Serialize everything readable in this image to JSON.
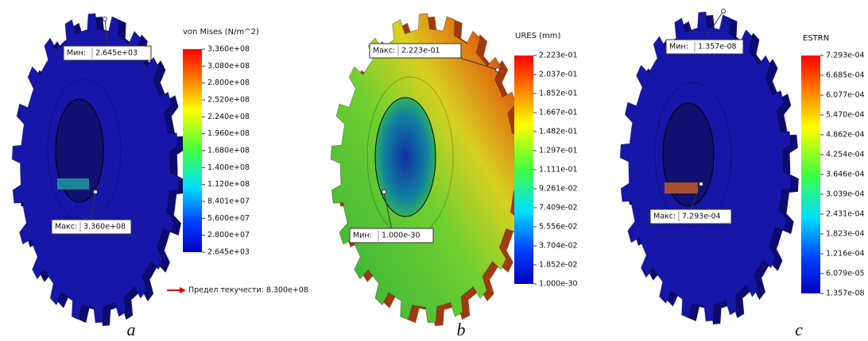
{
  "panels": [
    {
      "legend_title": "von Mises (N/m^2)",
      "scale_labels": [
        "3.360e+08",
        "3.080e+08",
        "2.800e+08",
        "2.520e+08",
        "2.240e+08",
        "1.960e+08",
        "1.680e+08",
        "1.400e+08",
        "1.120e+08",
        "8.401e+07",
        "5.600e+07",
        "2.800e+07",
        "2.645e+03"
      ],
      "min_callout": {
        "label": "Мин:",
        "value": "2.645e+03"
      },
      "max_callout": {
        "label": "Макс:",
        "value": "3.360e+08"
      },
      "yield_note": "Предел текучести: 8.300e+08",
      "caption": "a"
    },
    {
      "legend_title": "URES (mm)",
      "scale_labels": [
        "2.223e-01",
        "2.037e-01",
        "1.852e-01",
        "1.667e-01",
        "1.482e-01",
        "1.297e-01",
        "1.111e-01",
        "9.261e-02",
        "7.409e-02",
        "5.556e-02",
        "3.704e-02",
        "1.852e-02",
        "1.000e-30"
      ],
      "min_callout": {
        "label": "Мин:",
        "value": "1.000e-30"
      },
      "max_callout": {
        "label": "Макс:",
        "value": "2.223e-01"
      },
      "caption": "b"
    },
    {
      "legend_title": "ESTRN",
      "scale_labels": [
        "7.293e-04",
        "6.685e-04",
        "6.077e-04",
        "5.470e-04",
        "4.862e-04",
        "4.254e-04",
        "3.646e-04",
        "3.039e-04",
        "2.431e-04",
        "1.823e-04",
        "1.216e-04",
        "6.079e-05",
        "1.357e-08"
      ],
      "min_callout": {
        "label": "Мин:",
        "value": "1.357e-08"
      },
      "max_callout": {
        "label": "Макс:",
        "value": "7.293e-04"
      },
      "caption": "c"
    }
  ]
}
